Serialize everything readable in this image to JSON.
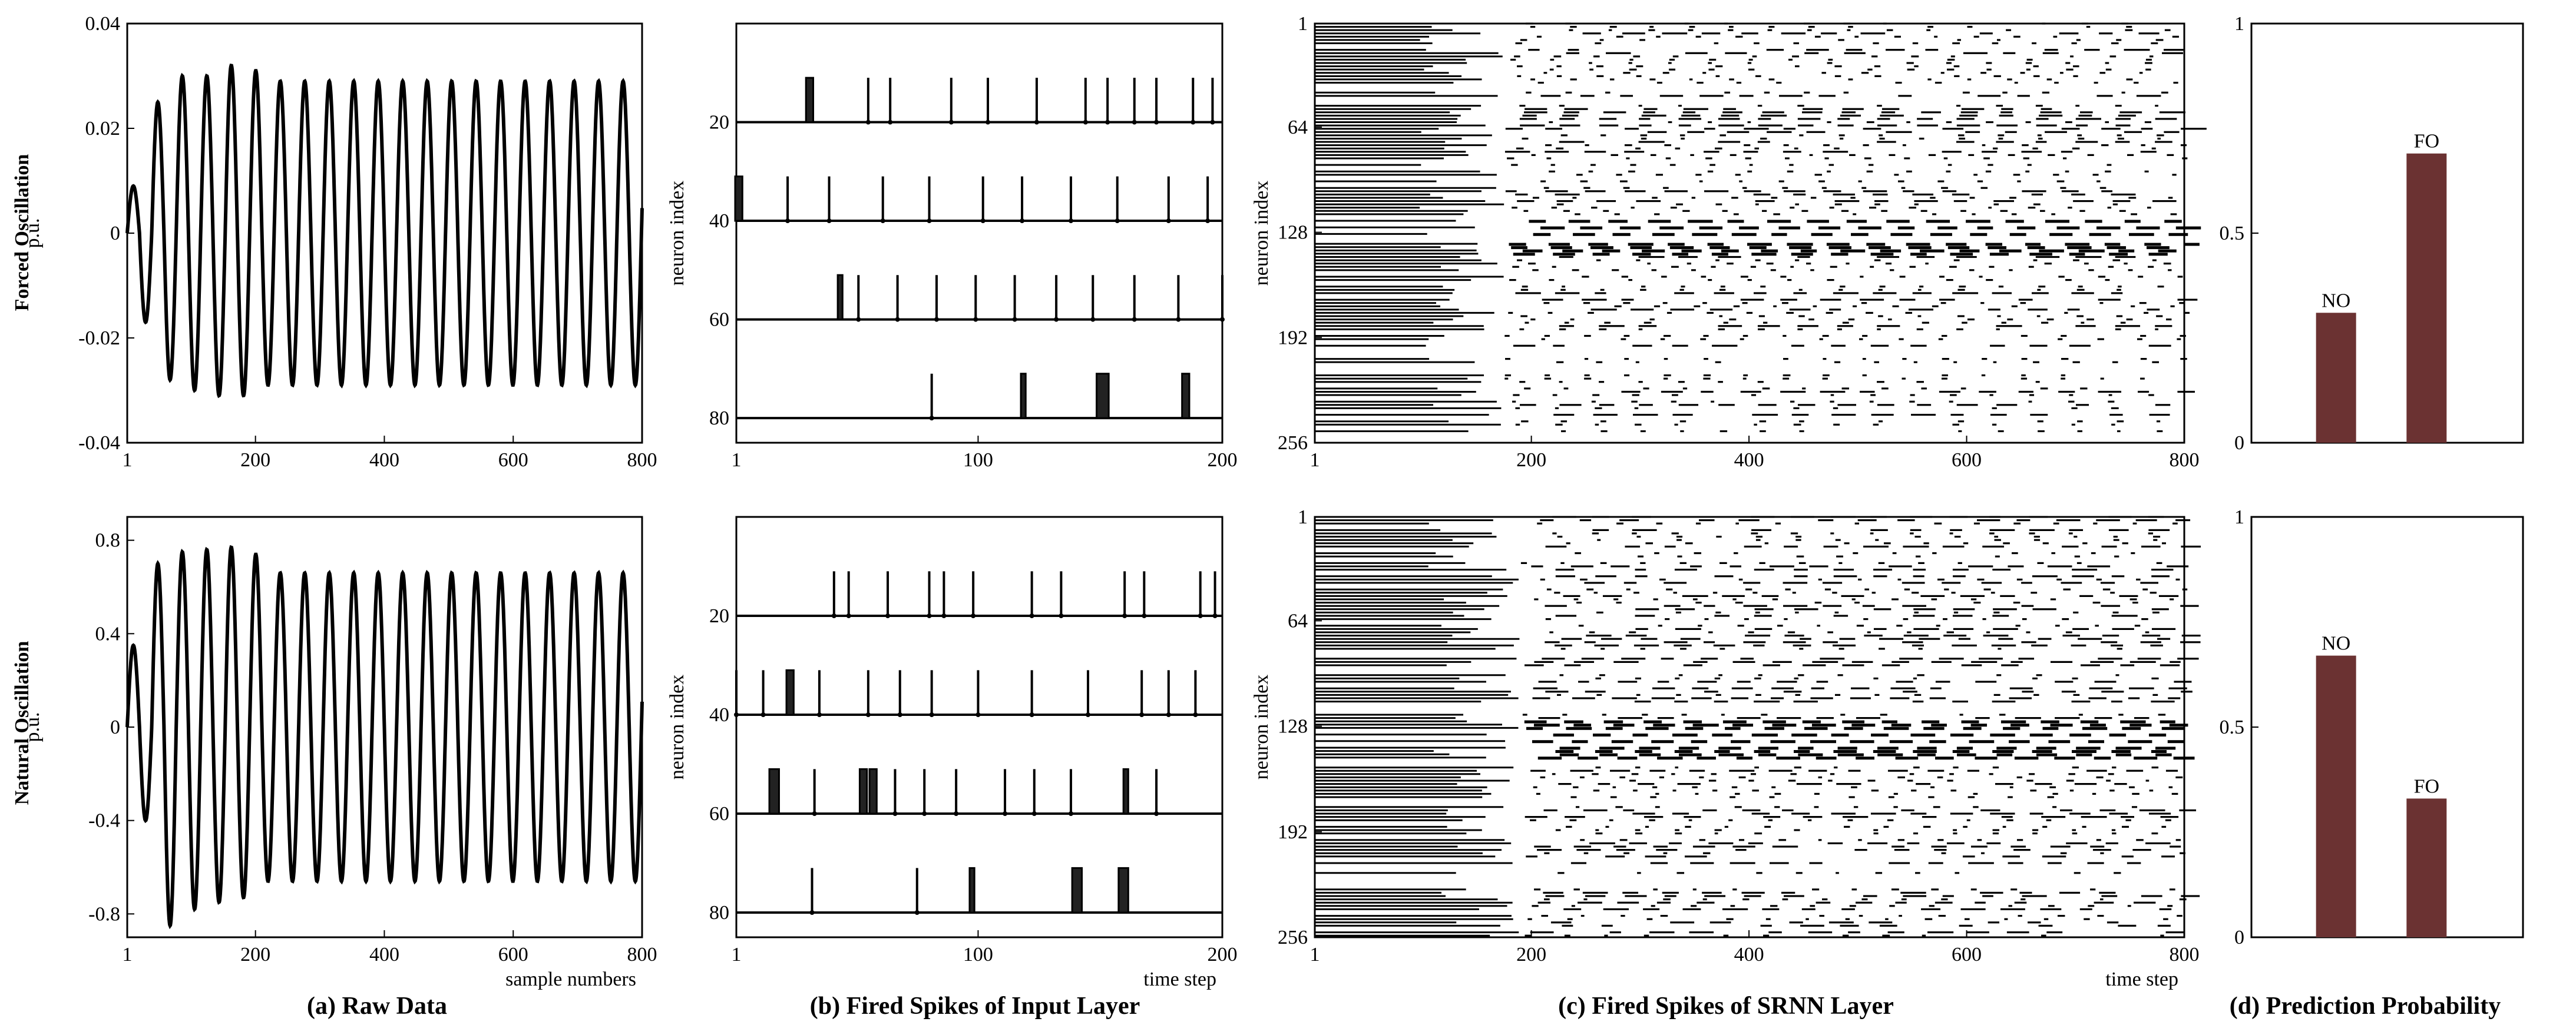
{
  "panel_labels": {
    "a": "(a) Raw Data",
    "b": "(b) Fired Spikes of Input Layer",
    "c": "(c) Fired Spikes of SRNN Layer",
    "d": "(d) Prediction Probability"
  },
  "row_labels": {
    "top": "Forced Oscillation",
    "bottom": "Natural Oscillation"
  },
  "chart_data": [
    {
      "id": "raw-fo",
      "type": "line",
      "row": "top",
      "ylabel": "p.u.",
      "xlabel": "",
      "xlim": [
        1,
        800
      ],
      "ylim": [
        -0.04,
        0.04
      ],
      "xticks": [
        "1",
        "200",
        "400",
        "600",
        "800"
      ],
      "yticks": [
        "-0.04",
        "-0.02",
        "0",
        "0.02",
        "0.04"
      ],
      "series": [
        {
          "cycles": 20,
          "peak": 0.029,
          "early_peaks": [
            0.009,
            -0.017,
            0.025,
            -0.028,
            0.03,
            -0.03,
            0.03,
            -0.031,
            0.032,
            -0.031,
            0.031
          ]
        }
      ]
    },
    {
      "id": "raw-no",
      "type": "line",
      "row": "bottom",
      "ylabel": "p.u.",
      "xlabel": "sample numbers",
      "xlim": [
        1,
        800
      ],
      "ylim": [
        -0.9,
        0.9
      ],
      "xticks": [
        "1",
        "200",
        "400",
        "600",
        "800"
      ],
      "yticks": [
        "-0.8",
        "-0.4",
        "0",
        "0.4",
        "0.8"
      ],
      "series": [
        {
          "cycles": 20,
          "peak": 0.66,
          "early_peaks": [
            0.35,
            -0.4,
            0.7,
            -0.85,
            0.75,
            -0.78,
            0.76,
            -0.75,
            0.77,
            -0.73,
            0.74
          ]
        }
      ]
    },
    {
      "id": "input-fo",
      "type": "scatter",
      "row": "top",
      "ylabel": "neuron index",
      "xlabel": "",
      "xlim": [
        1,
        200
      ],
      "ylim": [
        0,
        85
      ],
      "xticks": [
        "1",
        "100",
        "200"
      ],
      "yticks": [
        "20",
        "40",
        "60",
        "80"
      ],
      "groups": [
        {
          "baseline": 20,
          "spikes": [
            [
              30,
              32
            ],
            [
              55
            ],
            [
              64
            ],
            [
              89
            ],
            [
              104
            ],
            [
              124
            ],
            [
              144
            ],
            [
              153
            ],
            [
              164
            ],
            [
              173
            ],
            [
              188
            ],
            [
              196
            ]
          ]
        },
        {
          "baseline": 40,
          "spikes": [
            [
              1,
              3
            ],
            [
              22
            ],
            [
              39
            ],
            [
              61
            ],
            [
              80
            ],
            [
              102
            ],
            [
              118
            ],
            [
              138
            ],
            [
              157
            ],
            [
              178
            ],
            [
              194
            ]
          ]
        },
        {
          "baseline": 60,
          "spikes": [
            [
              43,
              44
            ],
            [
              51
            ],
            [
              67
            ],
            [
              83
            ],
            [
              99
            ],
            [
              115
            ],
            [
              132
            ],
            [
              147
            ],
            [
              164
            ],
            [
              182
            ],
            [
              200
            ]
          ]
        },
        {
          "baseline": 80,
          "spikes": [
            [
              81
            ],
            [
              118,
              119
            ],
            [
              149,
              153
            ],
            [
              184,
              186
            ]
          ]
        }
      ]
    },
    {
      "id": "input-no",
      "type": "scatter",
      "row": "bottom",
      "ylabel": "neuron index",
      "xlabel": "time step",
      "xlim": [
        1,
        200
      ],
      "ylim": [
        0,
        85
      ],
      "xticks": [
        "1",
        "100",
        "200"
      ],
      "yticks": [
        "20",
        "40",
        "60",
        "80"
      ],
      "groups": [
        {
          "baseline": 20,
          "spikes": [
            [
              41
            ],
            [
              47
            ],
            [
              63
            ],
            [
              80
            ],
            [
              86
            ],
            [
              98
            ],
            [
              122
            ],
            [
              134
            ],
            [
              160
            ],
            [
              168
            ],
            [
              191
            ],
            [
              197
            ]
          ]
        },
        {
          "baseline": 40,
          "spikes": [
            [
              1
            ],
            [
              12
            ],
            [
              22,
              24
            ],
            [
              35
            ],
            [
              55
            ],
            [
              68
            ],
            [
              81
            ],
            [
              100
            ],
            [
              122
            ],
            [
              145
            ],
            [
              167
            ],
            [
              178
            ],
            [
              189
            ]
          ]
        },
        {
          "baseline": 60,
          "spikes": [
            [
              15,
              18
            ],
            [
              33
            ],
            [
              52,
              54
            ],
            [
              56,
              58
            ],
            [
              66
            ],
            [
              78
            ],
            [
              91
            ],
            [
              111
            ],
            [
              123
            ],
            [
              138
            ],
            [
              160,
              161
            ],
            [
              173
            ]
          ]
        },
        {
          "baseline": 80,
          "spikes": [
            [
              32
            ],
            [
              75
            ],
            [
              97,
              98
            ],
            [
              139,
              142
            ],
            [
              158,
              161
            ]
          ]
        }
      ]
    },
    {
      "id": "srnn-fo",
      "type": "scatter",
      "row": "top",
      "ylabel": "neuron index",
      "xlabel": "",
      "xlim": [
        1,
        800
      ],
      "ylim": [
        1,
        256
      ],
      "xticks": [
        "1",
        "200",
        "400",
        "600",
        "800"
      ],
      "yticks": [
        "1",
        "64",
        "128",
        "192",
        "256"
      ],
      "dense_until": 175,
      "dense_bands": [
        [
          118,
          142
        ]
      ]
    },
    {
      "id": "srnn-no",
      "type": "scatter",
      "row": "bottom",
      "ylabel": "neuron index",
      "xlabel": "time step",
      "xlim": [
        1,
        800
      ],
      "ylim": [
        1,
        256
      ],
      "xticks": [
        "1",
        "200",
        "400",
        "600",
        "800"
      ],
      "yticks": [
        "1",
        "64",
        "128",
        "192",
        "256"
      ],
      "dense_until": 190,
      "dense_bands": [
        [
          125,
          150
        ]
      ]
    },
    {
      "id": "prob-fo",
      "type": "bar",
      "row": "top",
      "categories": [
        "NO",
        "FO"
      ],
      "values": [
        0.31,
        0.69
      ],
      "ylim": [
        0,
        1
      ],
      "yticks": [
        "0",
        "0.5",
        "1"
      ],
      "bar_color": "#6b3232"
    },
    {
      "id": "prob-no",
      "type": "bar",
      "row": "bottom",
      "categories": [
        "NO",
        "FO"
      ],
      "values": [
        0.67,
        0.33
      ],
      "ylim": [
        0,
        1
      ],
      "yticks": [
        "0",
        "0.5",
        "1"
      ],
      "bar_color": "#6b3232"
    }
  ]
}
